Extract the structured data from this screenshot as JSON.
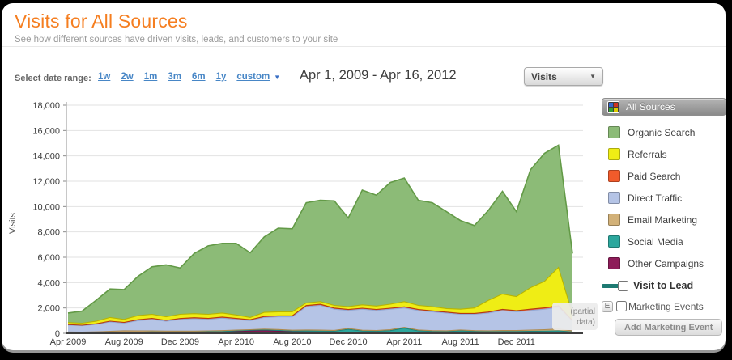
{
  "panel": {
    "title": "Visits for All Sources",
    "subtitle": "See how different sources have driven visits, leads, and customers to your site"
  },
  "toolbar": {
    "date_range_label": "Select date range:",
    "date_range_options": [
      "1w",
      "2w",
      "1m",
      "3m",
      "6m",
      "1y",
      "custom"
    ],
    "date_display": "Apr 1, 2009 - Apr 16, 2012",
    "metric_dropdown": {
      "selected": "Visits"
    }
  },
  "icons": {
    "chevron_down": "▼",
    "sources_grid_colors": [
      "#3366CC",
      "#CC3322",
      "#33A133",
      "#DDCC00"
    ]
  },
  "legend": {
    "all_sources_label": "All Sources",
    "items": [
      {
        "label": "Organic Search",
        "color": "#8CBB77"
      },
      {
        "label": "Referrals",
        "color": "#EFED15"
      },
      {
        "label": "Paid Search",
        "color": "#F15B2B"
      },
      {
        "label": "Direct Traffic",
        "color": "#B5C4E6"
      },
      {
        "label": "Email Marketing",
        "color": "#D2B178"
      },
      {
        "label": "Social Media",
        "color": "#2CA79D"
      },
      {
        "label": "Other Campaigns",
        "color": "#8E1C59"
      }
    ],
    "visit_to_lead_label": "Visit to Lead",
    "visit_to_lead_color": "#1E7A72",
    "marketing_events_badge": "E",
    "marketing_events_label": "Marketing Events",
    "add_marketing_event_label": "Add Marketing Event"
  },
  "chart_data": {
    "type": "area",
    "stacked": true,
    "ylabel": "Visits",
    "ylim": [
      0,
      18000
    ],
    "grid": true,
    "y_ticks": [
      "0",
      "2,000",
      "4,000",
      "6,000",
      "8,000",
      "10,000",
      "12,000",
      "14,000",
      "16,000",
      "18,000"
    ],
    "x": [
      "Apr 2009",
      "May 2009",
      "Jun 2009",
      "Jul 2009",
      "Aug 2009",
      "Sep 2009",
      "Oct 2009",
      "Nov 2009",
      "Dec 2009",
      "Jan 2010",
      "Feb 2010",
      "Mar 2010",
      "Apr 2010",
      "May 2010",
      "Jun 2010",
      "Jul 2010",
      "Aug 2010",
      "Sep 2010",
      "Oct 2010",
      "Nov 2010",
      "Dec 2010",
      "Jan 2011",
      "Feb 2011",
      "Mar 2011",
      "Apr 2011",
      "May 2011",
      "Jun 2011",
      "Jul 2011",
      "Aug 2011",
      "Sep 2011",
      "Oct 2011",
      "Nov 2011",
      "Dec 2011",
      "Jan 2012",
      "Feb 2012",
      "Mar 2012",
      "Apr 2012"
    ],
    "x_tick_labels": [
      "Apr 2009",
      "Aug 2009",
      "Dec 2009",
      "Apr 2010",
      "Aug 2010",
      "Dec 2010",
      "Apr 2011",
      "Aug 2011",
      "Dec 2011"
    ],
    "x_tick_indices": [
      0,
      4,
      8,
      12,
      16,
      20,
      24,
      28,
      32
    ],
    "stack_order_bottom_to_top": [
      "Other Campaigns",
      "Social Media",
      "Email Marketing",
      "Direct Traffic",
      "Paid Search",
      "Referrals",
      "Organic Search"
    ],
    "annotation": "(partial data)",
    "series": [
      {
        "name": "Organic Search",
        "color": "#8CBB77",
        "line_color": "#639A47",
        "values": [
          750,
          950,
          1650,
          2250,
          2350,
          3100,
          3750,
          4100,
          3650,
          4750,
          5400,
          5500,
          5650,
          5100,
          5950,
          6600,
          6550,
          7900,
          8000,
          8250,
          7000,
          9050,
          8750,
          9600,
          9750,
          8300,
          8200,
          7650,
          7000,
          6500,
          7100,
          8100,
          6700,
          9300,
          10100,
          9650,
          4800
        ]
      },
      {
        "name": "Referrals",
        "color": "#EFED15",
        "line_color": "#B8B400",
        "values": [
          160,
          160,
          200,
          290,
          240,
          330,
          320,
          280,
          330,
          320,
          320,
          320,
          270,
          180,
          320,
          320,
          320,
          210,
          210,
          210,
          220,
          270,
          270,
          320,
          410,
          320,
          330,
          280,
          330,
          430,
          920,
          1210,
          1110,
          1700,
          2090,
          3030,
          490
        ]
      },
      {
        "name": "Paid Search",
        "color": "#F15B2B",
        "line_color": "#B33A12",
        "values": [
          40,
          40,
          50,
          60,
          60,
          70,
          80,
          70,
          70,
          80,
          80,
          80,
          80,
          70,
          80,
          80,
          80,
          90,
          90,
          90,
          80,
          80,
          80,
          80,
          90,
          80,
          70,
          70,
          70,
          70,
          80,
          90,
          90,
          100,
          110,
          120,
          60
        ]
      },
      {
        "name": "Direct Traffic",
        "color": "#B5C4E6",
        "line_color": "#93A9D6",
        "values": [
          550,
          510,
          585,
          750,
          600,
          815,
          910,
          780,
          930,
          980,
          910,
          990,
          850,
          710,
          920,
          1000,
          1060,
          1840,
          1950,
          1670,
          1420,
          1660,
          1580,
          1620,
          1530,
          1540,
          1490,
          1400,
          1240,
          1290,
          1400,
          1580,
          1480,
          1550,
          1610,
          1710,
          760
        ]
      },
      {
        "name": "Email Marketing",
        "color": "#D2B178",
        "line_color": "#AE8A4F",
        "values": [
          60,
          50,
          60,
          80,
          120,
          100,
          80,
          70,
          60,
          60,
          60,
          70,
          60,
          50,
          60,
          70,
          60,
          80,
          80,
          70,
          60,
          60,
          60,
          70,
          60,
          60,
          60,
          60,
          60,
          60,
          70,
          80,
          80,
          100,
          120,
          150,
          80
        ]
      },
      {
        "name": "Social Media",
        "color": "#2CA79D",
        "line_color": "#1F837B",
        "values": [
          10,
          10,
          15,
          20,
          20,
          25,
          30,
          30,
          30,
          30,
          40,
          40,
          40,
          40,
          50,
          50,
          60,
          80,
          80,
          80,
          250,
          120,
          100,
          150,
          350,
          150,
          100,
          90,
          150,
          100,
          80,
          80,
          80,
          90,
          100,
          110,
          60
        ]
      },
      {
        "name": "Other Campaigns",
        "color": "#8E1C59",
        "line_color": "#6B0F40",
        "values": [
          30,
          30,
          40,
          50,
          60,
          60,
          80,
          70,
          80,
          80,
          90,
          100,
          150,
          200,
          220,
          180,
          120,
          100,
          90,
          80,
          70,
          60,
          60,
          60,
          60,
          50,
          50,
          50,
          50,
          50,
          50,
          60,
          60,
          60,
          70,
          80,
          50
        ]
      }
    ]
  }
}
